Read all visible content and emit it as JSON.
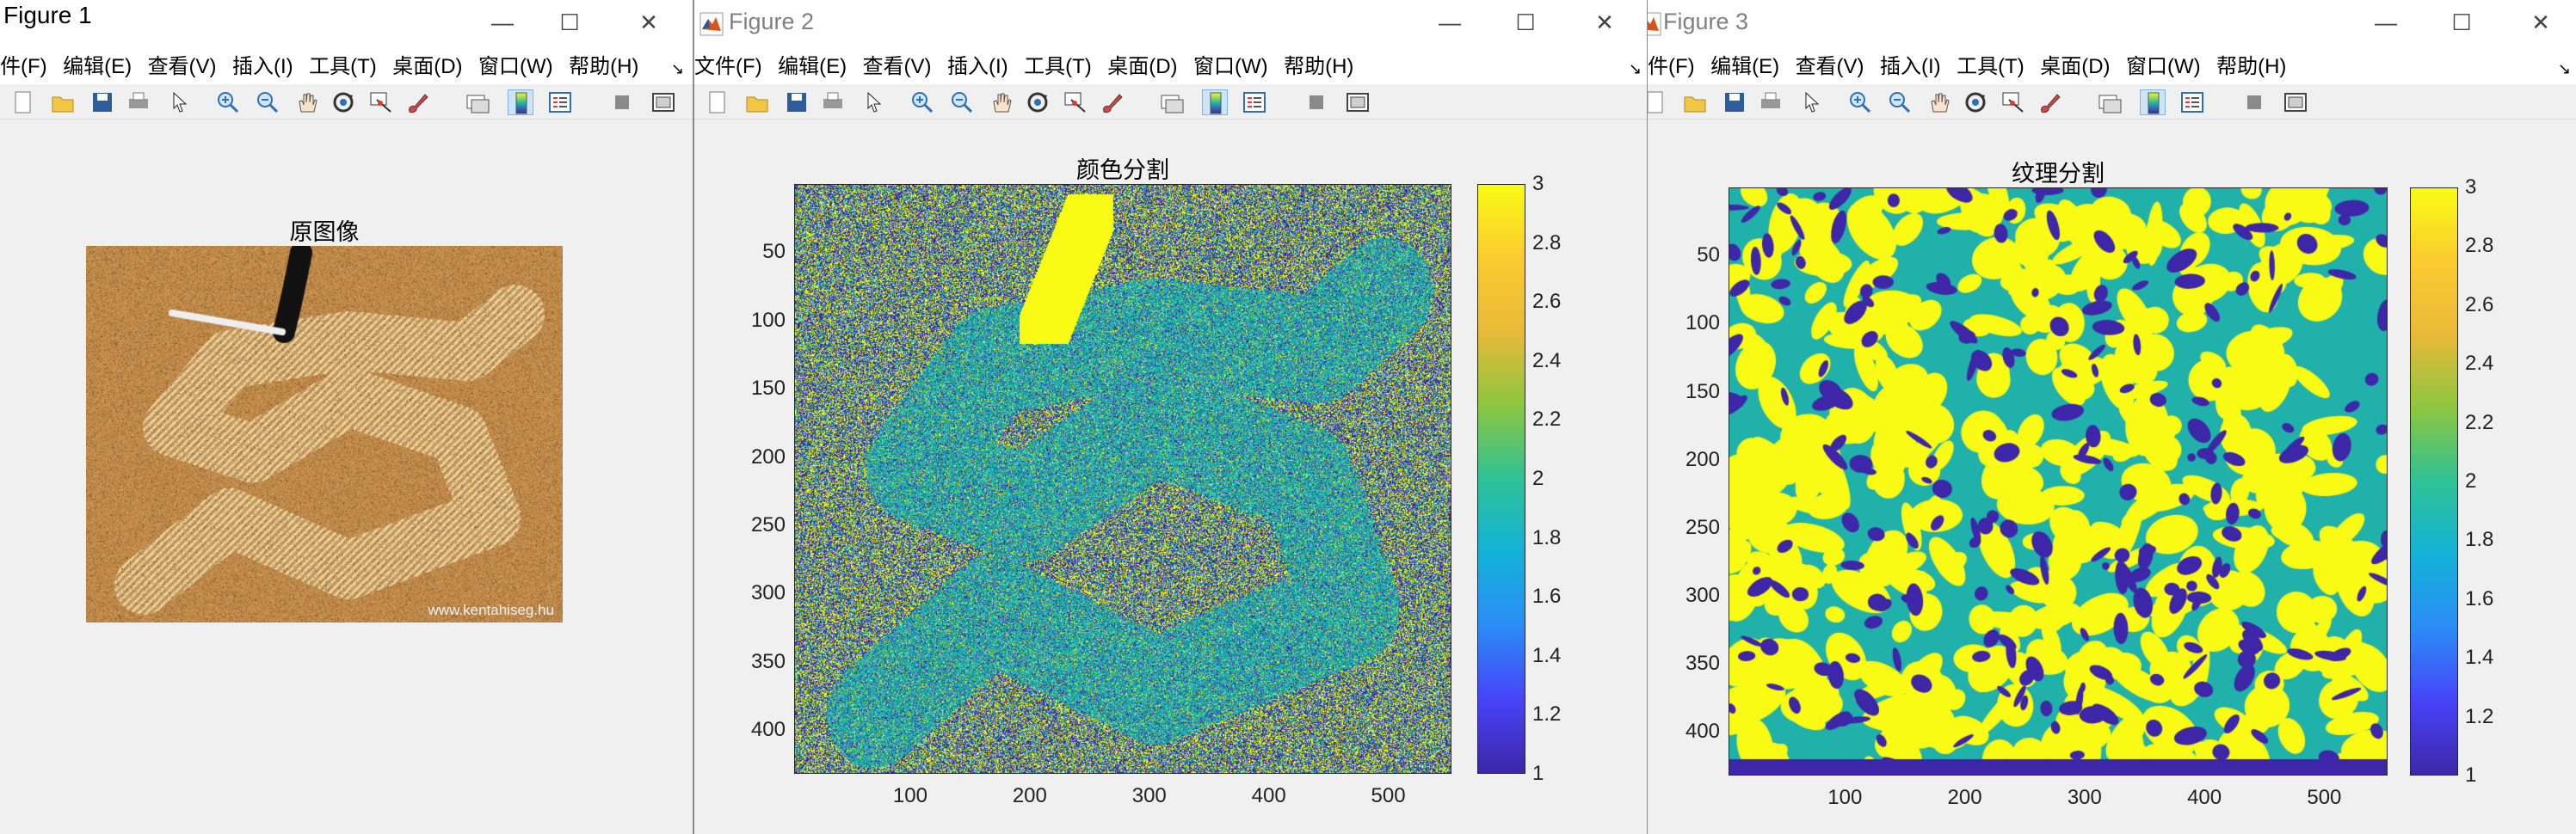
{
  "figures": [
    {
      "title": "Figure 1",
      "menus": [
        "件(F)",
        "编辑(E)",
        "查看(V)",
        "插入(I)",
        "工具(T)",
        "桌面(D)",
        "窗口(W)",
        "帮助(H)"
      ],
      "axes_title": "原图像",
      "watermark": "www.kentahiseg.hu"
    },
    {
      "title": "Figure 2",
      "menus": [
        "文件(F)",
        "编辑(E)",
        "查看(V)",
        "插入(I)",
        "工具(T)",
        "桌面(D)",
        "窗口(W)",
        "帮助(H)"
      ],
      "axes_title": "颜色分割",
      "yticks": [
        "50",
        "100",
        "150",
        "200",
        "250",
        "300",
        "350",
        "400"
      ],
      "xticks": [
        "100",
        "200",
        "300",
        "400",
        "500"
      ],
      "cticks": [
        "3",
        "2.8",
        "2.6",
        "2.4",
        "2.2",
        "2",
        "1.8",
        "1.6",
        "1.4",
        "1.2",
        "1"
      ]
    },
    {
      "title": "Figure 3",
      "menus": [
        "文件(F)",
        "编辑(E)",
        "查看(V)",
        "插入(I)",
        "工具(T)",
        "桌面(D)",
        "窗口(W)",
        "帮助(H)"
      ],
      "axes_title": "纹理分割",
      "yticks": [
        "50",
        "100",
        "150",
        "200",
        "250",
        "300",
        "350",
        "400"
      ],
      "xticks": [
        "100",
        "200",
        "300",
        "400",
        "500"
      ],
      "cticks": [
        "3",
        "2.8",
        "2.6",
        "2.4",
        "2.2",
        "2",
        "1.8",
        "1.6",
        "1.4",
        "1.2",
        "1"
      ]
    }
  ],
  "window_controls": {
    "minimize": "—",
    "maximize": "☐",
    "close": "✕"
  },
  "toolbar_icons": [
    "new-figure-icon",
    "open-file-icon",
    "save-icon",
    "print-icon",
    "select-arrow-icon",
    "zoom-in-icon",
    "zoom-out-icon",
    "pan-hand-icon",
    "rotate-3d-icon",
    "data-cursor-icon",
    "brush-icon",
    "link-plot-icon",
    "colorbar-icon",
    "legend-icon",
    "hide-plot-tools-icon",
    "show-plot-tools-icon"
  ],
  "colors": {
    "class1": "#3e26a8",
    "class2": "#20b2aa",
    "class3": "#f9fb15"
  }
}
